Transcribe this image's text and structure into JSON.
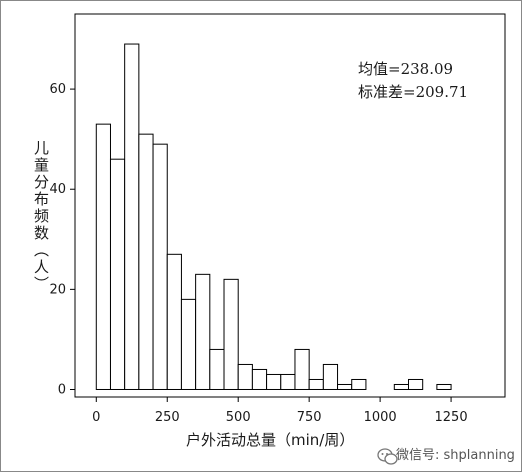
{
  "chart_data": {
    "type": "bar",
    "title": "",
    "xlabel": "户外活动总量（min/周）",
    "ylabel": "儿童分布频数（人）",
    "bin_width": 50,
    "x_start": 0,
    "xlim": [
      -75,
      1440
    ],
    "ylim": [
      -1.5,
      75
    ],
    "xticks": [
      "0",
      "250",
      "500",
      "750",
      "1000",
      "1250"
    ],
    "xtick_values": [
      0,
      250,
      500,
      750,
      1000,
      1250
    ],
    "yticks": [
      "0",
      "20",
      "40",
      "60"
    ],
    "ytick_values": [
      0,
      20,
      40,
      60
    ],
    "values": [
      53,
      46,
      69,
      51,
      49,
      27,
      18,
      23,
      8,
      22,
      5,
      4,
      3,
      3,
      8,
      2,
      5,
      1,
      2,
      0,
      0,
      1,
      2,
      0,
      1
    ],
    "grid": false,
    "annotations": [
      "均值=238.09",
      "标准差=209.71"
    ]
  },
  "watermark": {
    "text": "微信号: shplanning",
    "icon": "wechat-icon"
  }
}
